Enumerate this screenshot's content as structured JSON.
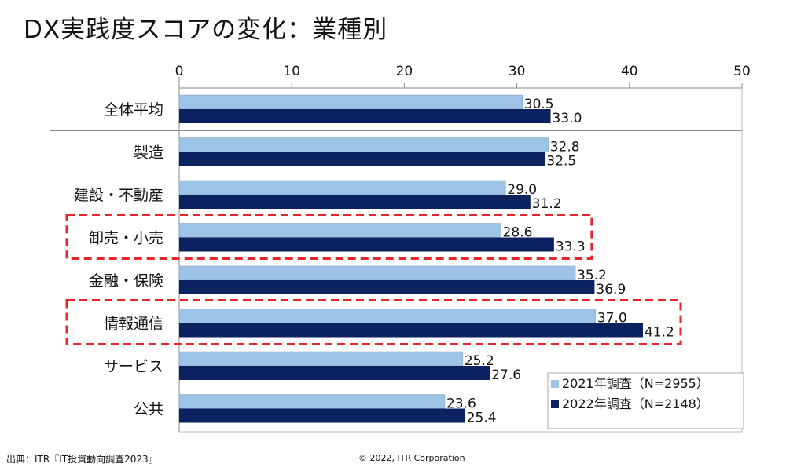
{
  "chart_data": {
    "type": "bar",
    "orientation": "horizontal",
    "title": "DX実践度スコアの変化：業種別",
    "categories": [
      "全体平均",
      "製造",
      "建設・不動産",
      "卸売・小売",
      "金融・保険",
      "情報通信",
      "サービス",
      "公共"
    ],
    "series": [
      {
        "name": "2021年調査（N=2955）",
        "color": "#9DC3E6",
        "values": [
          30.5,
          32.8,
          29.0,
          28.6,
          35.2,
          37.0,
          25.2,
          23.6
        ]
      },
      {
        "name": "2022年調査（N=2148）",
        "color": "#0B2160",
        "values": [
          33.0,
          32.5,
          31.2,
          33.3,
          36.9,
          41.2,
          27.6,
          25.4
        ]
      }
    ],
    "xlim": [
      0,
      50
    ],
    "xticks": [
      0,
      10,
      20,
      30,
      40,
      50
    ],
    "legend": "bottom-right",
    "highlighted_categories": [
      "卸売・小売",
      "情報通信"
    ],
    "highlight_color": "#E8262A"
  },
  "footer": {
    "source": "出典：ITR『IT投資動向調査2023』",
    "copyright": "© 2022, ITR Corporation"
  }
}
